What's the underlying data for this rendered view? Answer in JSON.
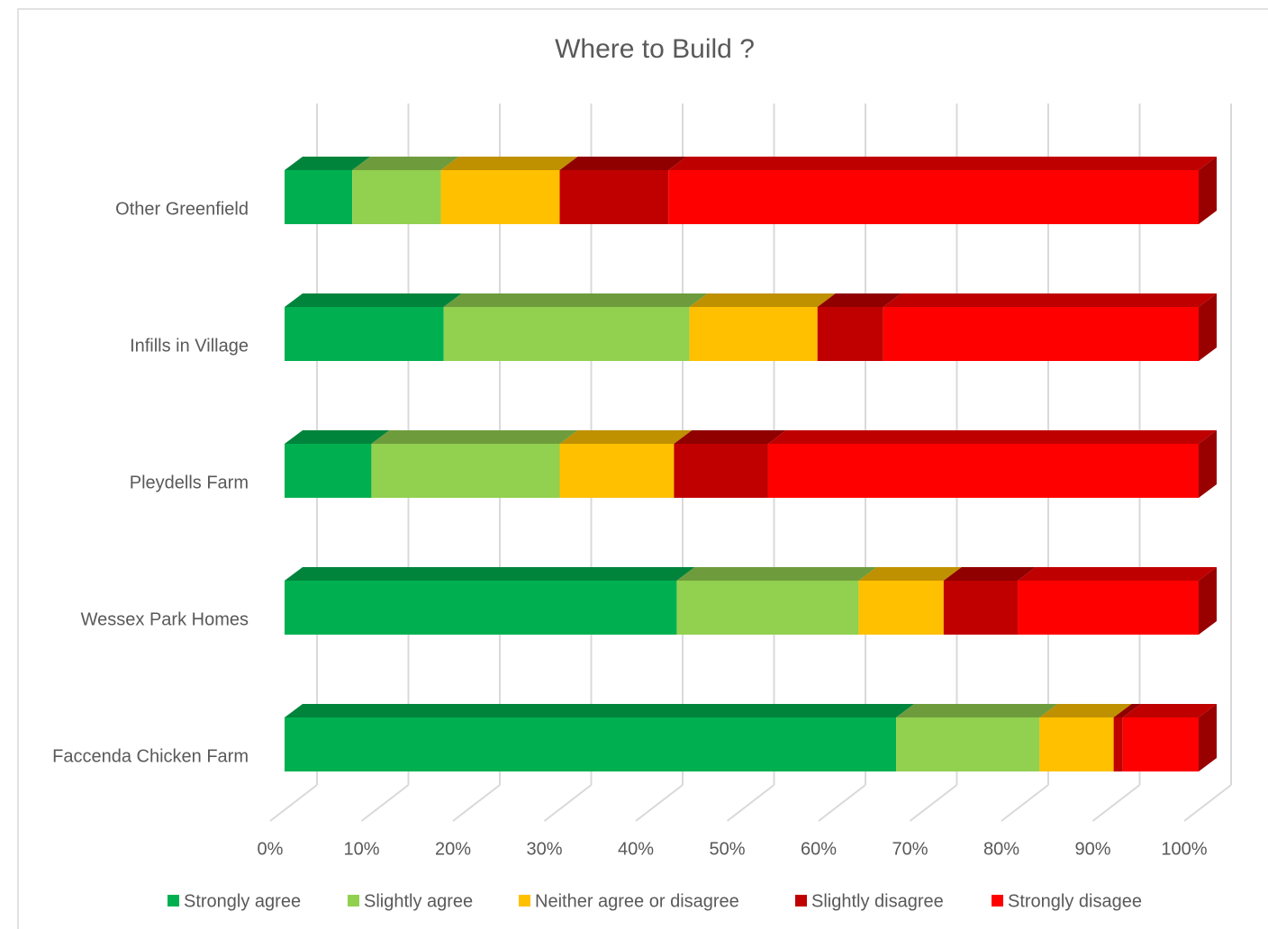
{
  "chart_data": {
    "type": "bar3d_stacked_horizontal",
    "title": "Where to Build ?",
    "categories": [
      "Other Greenfield",
      "Infills in Village",
      "Pleydells Farm",
      "Wessex Park Homes",
      "Faccenda Chicken Farm"
    ],
    "series": [
      {
        "name": "Strongly agree",
        "color": "#00b050",
        "values": [
          7.4,
          17.4,
          9.5,
          42.9,
          66.9
        ]
      },
      {
        "name": "Slightly agree",
        "color": "#92d050",
        "values": [
          9.7,
          26.9,
          20.6,
          19.9,
          15.7
        ]
      },
      {
        "name": "Neither agree or disagree",
        "color": "#ffc000",
        "values": [
          13.0,
          14.0,
          12.5,
          9.3,
          8.1
        ]
      },
      {
        "name": "Slightly disagree",
        "color": "#c00000",
        "values": [
          11.9,
          7.2,
          10.3,
          8.1,
          1.0
        ]
      },
      {
        "name": "Strongly disagee",
        "color": "#ff0000",
        "values": [
          58.0,
          34.5,
          47.1,
          19.8,
          8.3
        ]
      }
    ],
    "xlim": [
      0,
      100
    ],
    "xticks": [
      {
        "value": 0,
        "label": "0%"
      },
      {
        "value": 10,
        "label": "10%"
      },
      {
        "value": 20,
        "label": "20%"
      },
      {
        "value": 30,
        "label": "30%"
      },
      {
        "value": 40,
        "label": "40%"
      },
      {
        "value": 50,
        "label": "50%"
      },
      {
        "value": 60,
        "label": "60%"
      },
      {
        "value": 70,
        "label": "70%"
      },
      {
        "value": 80,
        "label": "80%"
      },
      {
        "value": 90,
        "label": "90%"
      },
      {
        "value": 100,
        "label": "100%"
      }
    ],
    "grid": true,
    "legend": "bottom"
  }
}
